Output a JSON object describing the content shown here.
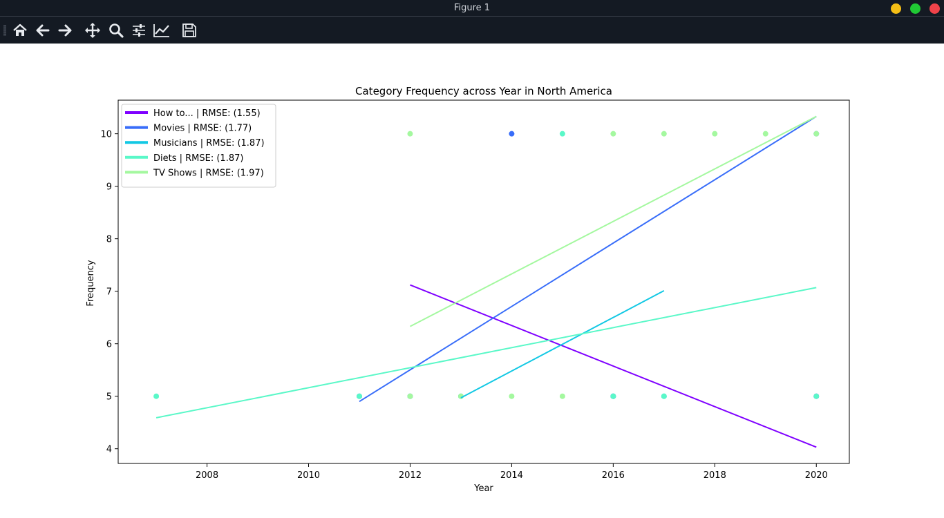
{
  "window": {
    "title": "Figure 1",
    "buttons": [
      {
        "name": "minimize-button",
        "color": "#f5bf16"
      },
      {
        "name": "maximize-button",
        "color": "#20c934"
      },
      {
        "name": "close-button",
        "color": "#f0434a"
      }
    ]
  },
  "toolbar": {
    "tools": [
      {
        "name": "home-icon",
        "tip": "Reset original view"
      },
      {
        "name": "back-icon",
        "tip": "Back"
      },
      {
        "name": "forward-icon",
        "tip": "Forward"
      },
      {
        "name": "pan-icon",
        "tip": "Pan"
      },
      {
        "name": "zoom-icon",
        "tip": "Zoom"
      },
      {
        "name": "configure-subplots-icon",
        "tip": "Configure subplots"
      },
      {
        "name": "edit-axis-icon",
        "tip": "Edit axis"
      },
      {
        "name": "save-icon",
        "tip": "Save the figure"
      }
    ]
  },
  "chart_data": {
    "type": "scatter",
    "title": "Category Frequency across Year in North America",
    "xlabel": "Year",
    "ylabel": "Frequency",
    "xlim": [
      2006.25,
      2020.65
    ],
    "ylim": [
      3.72,
      10.64
    ],
    "xticks": [
      2008,
      2010,
      2012,
      2014,
      2016,
      2018,
      2020
    ],
    "yticks": [
      4,
      5,
      6,
      7,
      8,
      9,
      10
    ],
    "grid": false,
    "legend_position": "top-left",
    "series": [
      {
        "name": "How to... | RMSE: (1.55)",
        "color": "#7f00ff",
        "points": [
          [
            2012,
            5
          ],
          [
            2016,
            5
          ],
          [
            2020,
            5
          ]
        ],
        "trend": [
          [
            2012,
            7.12
          ],
          [
            2020,
            4.03
          ]
        ]
      },
      {
        "name": "Movies | RMSE: (1.77)",
        "color": "#386df9",
        "points": [
          [
            2011,
            5
          ],
          [
            2014,
            10
          ],
          [
            2020,
            10
          ]
        ],
        "trend": [
          [
            2011,
            4.9
          ],
          [
            2020,
            10.33
          ]
        ]
      },
      {
        "name": "Musicians | RMSE: (1.87)",
        "color": "#12c8e4",
        "points": [
          [
            2013,
            5
          ],
          [
            2016,
            5
          ],
          [
            2017,
            5
          ]
        ],
        "trend": [
          [
            2013,
            4.97
          ],
          [
            2017,
            7.01
          ]
        ]
      },
      {
        "name": "Diets | RMSE: (1.87)",
        "color": "#5af8c8",
        "points": [
          [
            2007,
            5
          ],
          [
            2011,
            5
          ],
          [
            2012,
            5
          ],
          [
            2015,
            10
          ],
          [
            2016,
            5
          ],
          [
            2017,
            5
          ],
          [
            2020,
            5
          ]
        ],
        "trend": [
          [
            2007,
            4.59
          ],
          [
            2020,
            7.07
          ]
        ]
      },
      {
        "name": "TV Shows | RMSE: (1.97)",
        "color": "#a4f89f",
        "points": [
          [
            2012,
            10
          ],
          [
            2013,
            5
          ],
          [
            2014,
            5
          ],
          [
            2015,
            5
          ],
          [
            2016,
            10
          ],
          [
            2017,
            10
          ],
          [
            2018,
            10
          ],
          [
            2019,
            10
          ],
          [
            2020,
            10
          ],
          [
            2012,
            5
          ]
        ],
        "trend": [
          [
            2012,
            6.33
          ],
          [
            2020,
            10.33
          ]
        ]
      }
    ]
  }
}
